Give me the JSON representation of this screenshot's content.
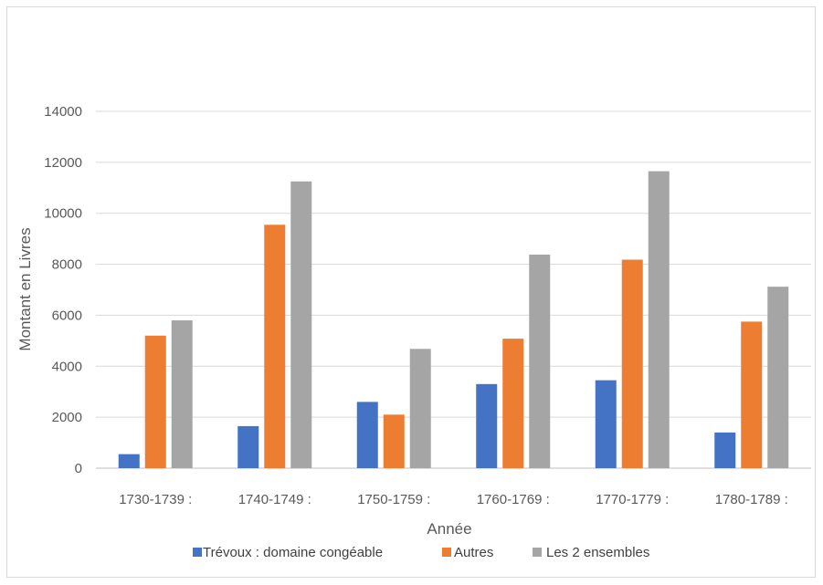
{
  "chart_data": {
    "type": "bar",
    "title": "",
    "xlabel": "Année",
    "ylabel": "Montant en Livres",
    "ylim": [
      0,
      14000
    ],
    "yticks": [
      0,
      2000,
      4000,
      6000,
      8000,
      10000,
      12000,
      14000
    ],
    "grid": true,
    "legend_position": "bottom",
    "categories": [
      "1730-1739 :",
      "1740-1749 :",
      "1750-1759 :",
      "1760-1769 :",
      "1770-1779 :",
      "1780-1789 :"
    ],
    "series": [
      {
        "name": "Trévoux : domaine congéable",
        "color": "#4472c4",
        "values": [
          550,
          1650,
          2600,
          3300,
          3450,
          1400
        ]
      },
      {
        "name": "Autres",
        "color": "#ed7d31",
        "values": [
          5200,
          9550,
          2100,
          5080,
          8180,
          5750
        ]
      },
      {
        "name": "Les 2 ensembles",
        "color": "#a5a5a5",
        "values": [
          5800,
          11250,
          4680,
          8380,
          11650,
          7120
        ]
      }
    ]
  }
}
